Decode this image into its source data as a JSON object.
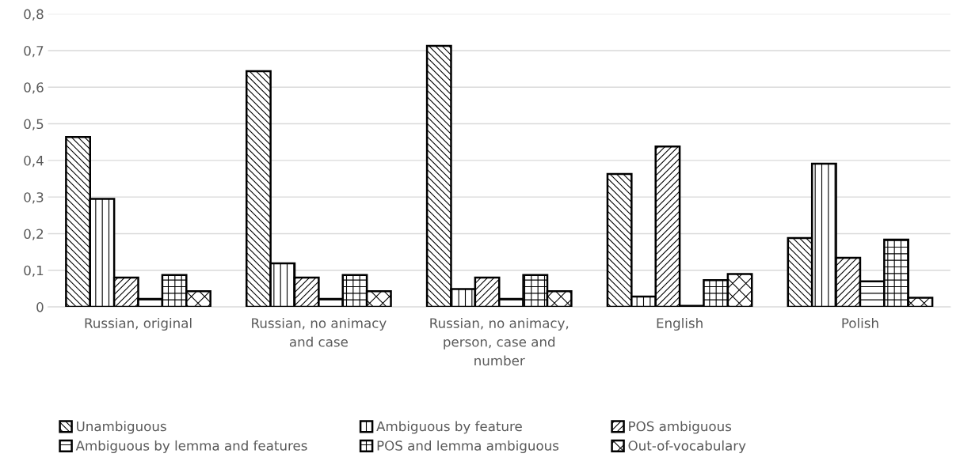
{
  "chart_data": {
    "type": "bar",
    "categories": [
      "Russian, original",
      "Russian, no animacy and case",
      "Russian, no animacy, person, case and number",
      "English",
      "Polish"
    ],
    "series": [
      {
        "name": "Unambiguous",
        "color": "#000000",
        "values": [
          0.464,
          0.644,
          0.713,
          0.363,
          0.188
        ]
      },
      {
        "name": "Ambiguous by feature",
        "color": "#000000",
        "values": [
          0.295,
          0.119,
          0.049,
          0.028,
          0.391
        ]
      },
      {
        "name": "POS ambiguous",
        "color": "#000000",
        "values": [
          0.08,
          0.08,
          0.08,
          0.438,
          0.134
        ]
      },
      {
        "name": "Ambiguous by lemma and features",
        "color": "#000000",
        "values": [
          0.022,
          0.022,
          0.022,
          0.003,
          0.07
        ]
      },
      {
        "name": "POS and lemma ambiguous",
        "color": "#000000",
        "values": [
          0.087,
          0.087,
          0.087,
          0.073,
          0.184
        ]
      },
      {
        "name": "Out-of-vocabulary",
        "color": "#000000",
        "values": [
          0.043,
          0.043,
          0.043,
          0.09,
          0.025
        ]
      }
    ],
    "ylim": [
      0,
      0.8
    ],
    "yticks": [
      0,
      {
        "value": 0.1,
        "label": "0,1"
      },
      {
        "value": 0.2,
        "label": "0,2"
      },
      {
        "value": 0.3,
        "label": "0,3"
      },
      {
        "value": 0.4,
        "label": "0,4"
      },
      {
        "value": 0.5,
        "label": "0,5"
      },
      {
        "value": 0.6,
        "label": "0,6"
      },
      {
        "value": 0.7,
        "label": "0,7"
      },
      {
        "value": 0.8,
        "label": "0,8"
      }
    ],
    "grid": "y",
    "legend": "bottom"
  }
}
